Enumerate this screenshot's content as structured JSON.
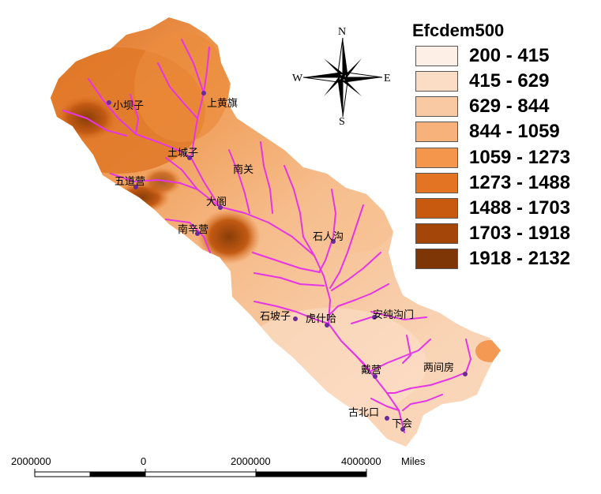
{
  "legend": {
    "title": "Efcdem500",
    "classes": [
      {
        "label": "200 - 415",
        "color": "#fdefe6"
      },
      {
        "label": "415 - 629",
        "color": "#fbddc6"
      },
      {
        "label": "629 - 844",
        "color": "#f9c9a3"
      },
      {
        "label": "844 - 1059",
        "color": "#f7b27b"
      },
      {
        "label": "1059 - 1273",
        "color": "#f4974d"
      },
      {
        "label": "1273 - 1488",
        "color": "#e27424"
      },
      {
        "label": "1488 - 1703",
        "color": "#c85a10"
      },
      {
        "label": "1703 - 1918",
        "color": "#a4460a"
      },
      {
        "label": "1918 - 2132",
        "color": "#7e3606"
      }
    ]
  },
  "compass": {
    "north": "N",
    "south": "S",
    "east": "E",
    "west": "W"
  },
  "places": [
    {
      "name": "小坝子"
    },
    {
      "name": "上黄旗"
    },
    {
      "name": "土城子"
    },
    {
      "name": "南关"
    },
    {
      "name": "五道营"
    },
    {
      "name": "大阁"
    },
    {
      "name": "南辛营"
    },
    {
      "name": "石人沟"
    },
    {
      "name": "石坡子"
    },
    {
      "name": "虎什哈"
    },
    {
      "name": "安纯沟门"
    },
    {
      "name": "戴营"
    },
    {
      "name": "两间房"
    },
    {
      "name": "古北口"
    },
    {
      "name": "下会"
    }
  ],
  "scale_bar": {
    "labels": [
      "2000000",
      "0",
      "2000000",
      "4000000"
    ],
    "unit": "Miles"
  },
  "colors": {
    "river": "#e535e5",
    "site": "#6a2a9a"
  }
}
